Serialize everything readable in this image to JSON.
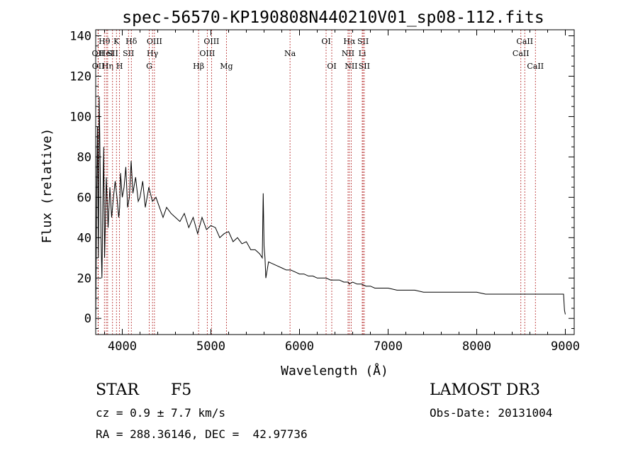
{
  "chart_data": {
    "type": "line",
    "title": "spec-56570-KP190808N440210V01_sp08-112.fits",
    "xlabel": "Wavelength (Å)",
    "ylabel": "Flux (relative)",
    "xlim": [
      3700,
      9100
    ],
    "ylim": [
      -8,
      143
    ],
    "x_ticks": [
      4000,
      5000,
      6000,
      7000,
      8000,
      9000
    ],
    "y_ticks": [
      0,
      20,
      40,
      60,
      80,
      100,
      120,
      140
    ],
    "grid": false,
    "line_color": "#000000",
    "marker_color": "#b22222",
    "series": [
      {
        "name": "spectrum",
        "x": [
          3700,
          3710,
          3720,
          3730,
          3740,
          3750,
          3760,
          3770,
          3780,
          3790,
          3800,
          3820,
          3840,
          3860,
          3880,
          3900,
          3920,
          3940,
          3960,
          3970,
          3980,
          4000,
          4020,
          4040,
          4060,
          4080,
          4100,
          4120,
          4150,
          4180,
          4200,
          4230,
          4260,
          4300,
          4340,
          4380,
          4420,
          4460,
          4500,
          4550,
          4600,
          4650,
          4700,
          4750,
          4800,
          4850,
          4900,
          4950,
          5000,
          5050,
          5100,
          5150,
          5200,
          5250,
          5300,
          5350,
          5400,
          5450,
          5500,
          5550,
          5580,
          5590,
          5600,
          5610,
          5620,
          5650,
          5700,
          5750,
          5800,
          5850,
          5900,
          5950,
          6000,
          6050,
          6100,
          6150,
          6200,
          6250,
          6300,
          6350,
          6400,
          6450,
          6500,
          6550,
          6560,
          6600,
          6650,
          6700,
          6750,
          6800,
          6850,
          6900,
          6950,
          7000,
          7100,
          7200,
          7300,
          7400,
          7500,
          7600,
          7700,
          7800,
          7900,
          8000,
          8100,
          8200,
          8300,
          8400,
          8500,
          8600,
          8700,
          8800,
          8900,
          8980,
          8990,
          9000
        ],
        "y": [
          -5,
          60,
          95,
          30,
          110,
          75,
          40,
          20,
          55,
          85,
          30,
          70,
          45,
          65,
          50,
          60,
          68,
          60,
          50,
          55,
          72,
          60,
          65,
          75,
          55,
          60,
          78,
          62,
          70,
          58,
          60,
          68,
          55,
          65,
          58,
          60,
          55,
          50,
          55,
          52,
          50,
          48,
          52,
          45,
          50,
          42,
          50,
          44,
          46,
          45,
          40,
          42,
          43,
          38,
          40,
          37,
          38,
          34,
          34,
          32,
          30,
          62,
          36,
          30,
          20,
          28,
          27,
          26,
          25,
          24,
          24,
          23,
          22,
          22,
          21,
          21,
          20,
          20,
          20,
          19,
          19,
          19,
          18,
          18,
          17,
          18,
          17,
          17,
          16,
          16,
          15,
          15,
          15,
          15,
          14,
          14,
          14,
          13,
          13,
          13,
          13,
          13,
          13,
          13,
          12,
          12,
          12,
          12,
          12,
          12,
          12,
          12,
          12,
          12,
          4,
          2
        ]
      }
    ],
    "line_markers": [
      {
        "label": "Hθ",
        "x": 3798,
        "row": 1
      },
      {
        "label": "OII",
        "x": 3727,
        "row": 2
      },
      {
        "label": "OII",
        "x": 3729,
        "row": 3
      },
      {
        "label": "HeI",
        "x": 3820,
        "row": 2
      },
      {
        "label": "Hη",
        "x": 3835,
        "row": 3
      },
      {
        "label": "K",
        "x": 3934,
        "row": 1
      },
      {
        "label": "SII",
        "x": 3890,
        "row": 2
      },
      {
        "label": "H",
        "x": 3969,
        "row": 3
      },
      {
        "label": "Hδ",
        "x": 4102,
        "row": 1
      },
      {
        "label": "SII",
        "x": 4070,
        "row": 2
      },
      {
        "label": "OIII",
        "x": 4363,
        "row": 1
      },
      {
        "label": "Hγ",
        "x": 4341,
        "row": 2
      },
      {
        "label": "G",
        "x": 4304,
        "row": 3
      },
      {
        "label": "Hβ",
        "x": 4861,
        "row": 3
      },
      {
        "label": "OIII",
        "x": 5007,
        "row": 1
      },
      {
        "label": "OIII",
        "x": 4959,
        "row": 2
      },
      {
        "label": "Mg",
        "x": 5175,
        "row": 3
      },
      {
        "label": "Na",
        "x": 5893,
        "row": 2
      },
      {
        "label": "OI",
        "x": 6300,
        "row": 1
      },
      {
        "label": "OI",
        "x": 6364,
        "row": 3
      },
      {
        "label": "Hα",
        "x": 6563,
        "row": 1
      },
      {
        "label": "NII",
        "x": 6548,
        "row": 2
      },
      {
        "label": "NII",
        "x": 6583,
        "row": 3
      },
      {
        "label": "SII",
        "x": 6717,
        "row": 1
      },
      {
        "label": "Li",
        "x": 6708,
        "row": 2
      },
      {
        "label": "SII",
        "x": 6731,
        "row": 3
      },
      {
        "label": "CaII",
        "x": 8542,
        "row": 1
      },
      {
        "label": "CaII",
        "x": 8498,
        "row": 2
      },
      {
        "label": "CaII",
        "x": 8662,
        "row": 3
      }
    ]
  },
  "info": {
    "object_class": "STAR",
    "subclass": "F5",
    "survey": "LAMOST DR3",
    "cz": "cz = 0.9 ± 7.7 km/s",
    "obs_date": "Obs-Date: 20131004",
    "coords": "RA = 288.36146, DEC =  42.97736"
  }
}
